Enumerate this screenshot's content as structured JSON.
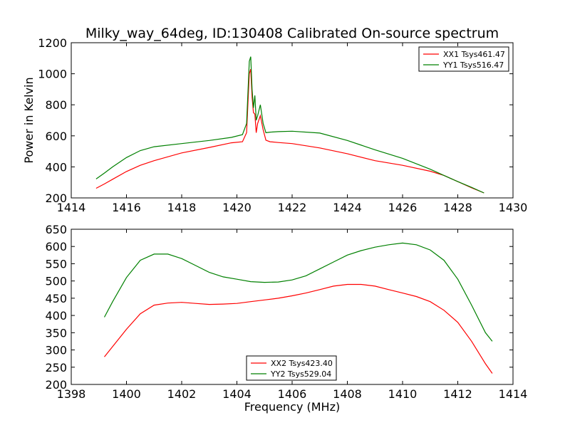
{
  "figure": {
    "title": "Milky_way_64deg, ID:130408 Calibrated On-source spectrum"
  },
  "chart_data": [
    {
      "type": "line",
      "title": "Milky_way_64deg, ID:130408 Calibrated On-source spectrum",
      "xlabel": "",
      "ylabel": "Power in Kelvin",
      "xlim": [
        1414,
        1430
      ],
      "ylim": [
        200,
        1200
      ],
      "xticks": [
        1414,
        1416,
        1418,
        1420,
        1422,
        1424,
        1426,
        1428,
        1430
      ],
      "yticks": [
        200,
        400,
        600,
        800,
        1000,
        1200
      ],
      "legend_position": "top-right",
      "grid": false,
      "series": [
        {
          "name": "XX1 Tsys461.47",
          "color": "#ff0000",
          "x": [
            1414.9,
            1415.2,
            1415.5,
            1416.0,
            1416.5,
            1417.0,
            1418.0,
            1419.0,
            1419.8,
            1420.2,
            1420.35,
            1420.45,
            1420.5,
            1420.55,
            1420.6,
            1420.65,
            1420.7,
            1420.75,
            1420.85,
            1420.95,
            1421.05,
            1421.2,
            1421.5,
            1422.0,
            1423.0,
            1424.0,
            1425.0,
            1426.0,
            1427.0,
            1427.5,
            1428.0,
            1428.5,
            1428.95
          ],
          "y": [
            262,
            290,
            320,
            370,
            410,
            440,
            490,
            525,
            555,
            562,
            620,
            1000,
            1030,
            850,
            750,
            740,
            620,
            680,
            730,
            640,
            572,
            562,
            557,
            550,
            522,
            485,
            440,
            410,
            372,
            345,
            305,
            265,
            232
          ]
        },
        {
          "name": "YY1 Tsys516.47",
          "color": "#008000",
          "x": [
            1414.9,
            1415.2,
            1415.5,
            1416.0,
            1416.5,
            1417.0,
            1418.0,
            1419.0,
            1419.8,
            1420.2,
            1420.35,
            1420.45,
            1420.5,
            1420.55,
            1420.6,
            1420.65,
            1420.7,
            1420.75,
            1420.85,
            1420.95,
            1421.05,
            1421.2,
            1421.5,
            1422.0,
            1423.0,
            1424.0,
            1425.0,
            1426.0,
            1427.0,
            1427.5,
            1428.0,
            1428.5,
            1428.95
          ],
          "y": [
            322,
            360,
            400,
            460,
            505,
            530,
            550,
            570,
            590,
            608,
            680,
            1080,
            1110,
            900,
            780,
            860,
            700,
            730,
            800,
            680,
            620,
            624,
            627,
            630,
            618,
            570,
            510,
            455,
            385,
            345,
            305,
            268,
            232
          ]
        }
      ]
    },
    {
      "type": "line",
      "title": "",
      "xlabel": "Frequency (MHz)",
      "ylabel": "",
      "xlim": [
        1398,
        1414
      ],
      "ylim": [
        200,
        650
      ],
      "xticks": [
        1398,
        1400,
        1402,
        1404,
        1406,
        1408,
        1410,
        1412,
        1414
      ],
      "yticks": [
        200,
        250,
        300,
        350,
        400,
        450,
        500,
        550,
        600,
        650
      ],
      "legend_position": "bottom-center",
      "grid": false,
      "series": [
        {
          "name": "XX2 Tsys423.40",
          "color": "#ff0000",
          "x": [
            1399.2,
            1399.5,
            1400.0,
            1400.5,
            1401.0,
            1401.5,
            1402.0,
            1402.5,
            1403.0,
            1403.5,
            1404.0,
            1404.5,
            1405.0,
            1405.5,
            1406.0,
            1406.5,
            1407.0,
            1407.5,
            1408.0,
            1408.5,
            1409.0,
            1409.5,
            1410.0,
            1410.5,
            1411.0,
            1411.5,
            1412.0,
            1412.5,
            1413.0,
            1413.25
          ],
          "y": [
            280,
            310,
            360,
            405,
            430,
            436,
            438,
            435,
            432,
            433,
            435,
            440,
            445,
            450,
            457,
            465,
            475,
            485,
            490,
            490,
            485,
            475,
            465,
            455,
            440,
            415,
            380,
            325,
            260,
            232
          ]
        },
        {
          "name": "YY2 Tsys529.04",
          "color": "#008000",
          "x": [
            1399.2,
            1399.5,
            1400.0,
            1400.5,
            1401.0,
            1401.5,
            1402.0,
            1402.5,
            1403.0,
            1403.5,
            1404.0,
            1404.5,
            1405.0,
            1405.5,
            1406.0,
            1406.5,
            1407.0,
            1407.5,
            1408.0,
            1408.5,
            1409.0,
            1409.5,
            1410.0,
            1410.5,
            1411.0,
            1411.5,
            1412.0,
            1412.5,
            1413.0,
            1413.25
          ],
          "y": [
            395,
            440,
            510,
            560,
            578,
            578,
            565,
            545,
            525,
            512,
            505,
            498,
            496,
            497,
            503,
            515,
            535,
            555,
            575,
            588,
            598,
            605,
            610,
            605,
            590,
            560,
            505,
            430,
            350,
            325
          ]
        }
      ]
    }
  ]
}
